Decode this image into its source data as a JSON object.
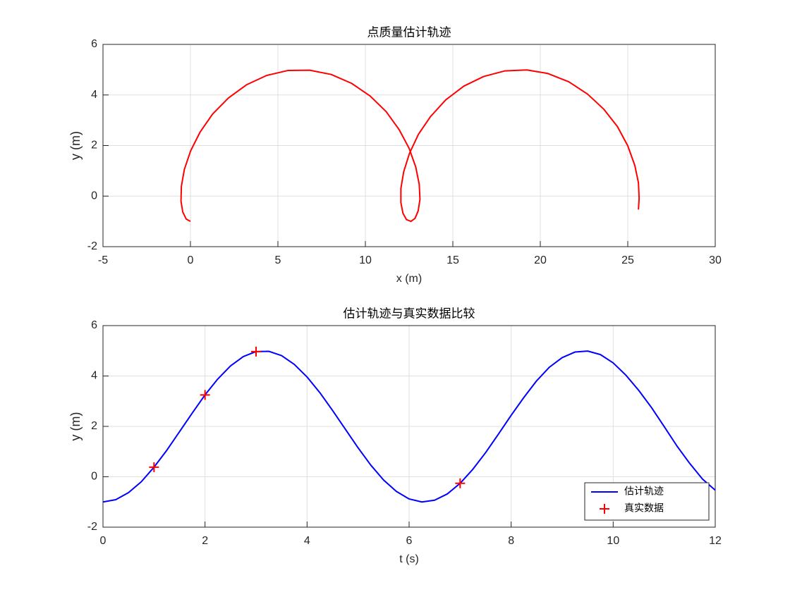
{
  "chart_data": [
    {
      "type": "line",
      "title": "点质量估计轨迹",
      "x_label": "x (m)",
      "y_label": "y (m)",
      "x": [
        0,
        -0.24,
        -0.44,
        -0.54,
        -0.52,
        -0.35,
        0.01,
        0.55,
        1.27,
        2.17,
        3.2,
        4.35,
        5.58,
        6.82,
        8.05,
        9.21,
        10.27,
        11.19,
        11.93,
        12.5,
        12.88,
        13.08,
        13.12,
        13.02,
        12.84,
        12.6,
        12.35,
        12.15,
        12.03,
        12.03,
        12.19,
        12.52,
        13.03,
        13.73,
        14.6,
        15.63,
        16.76,
        17.96,
        19.23,
        20.43,
        21.63,
        22.71,
        23.64,
        24.41,
        25,
        25.4,
        25.61,
        25.65,
        25.61
      ],
      "series": [
        {
          "color": "#ff0000",
          "values": [
            -1,
            -0.91,
            -0.63,
            -0.2,
            0.38,
            1.05,
            1.79,
            2.53,
            3.25,
            3.88,
            4.4,
            4.77,
            4.97,
            4.98,
            4.81,
            4.46,
            3.96,
            3.34,
            2.63,
            1.89,
            1.15,
            0.46,
            -0.13,
            -0.58,
            -0.88,
            -1,
            -0.93,
            -0.68,
            -0.26,
            0.3,
            0.96,
            1.69,
            2.44,
            3.15,
            3.81,
            4.35,
            4.73,
            4.95,
            4.99,
            4.85,
            4.52,
            4.03,
            3.43,
            2.75,
            1.99,
            1.22,
            0.53,
            -0.09,
            -0.53
          ]
        }
      ],
      "xlim": [
        -5,
        30
      ],
      "xticks": [
        -5,
        0,
        5,
        10,
        15,
        20,
        25,
        30
      ],
      "ylim": [
        -2,
        6
      ],
      "yticks": [
        -2,
        0,
        2,
        4,
        6
      ],
      "grid": true
    },
    {
      "type": "line",
      "title": "估计轨迹与真实数据比较",
      "x_label": "t (s)",
      "y_label": "y (m)",
      "x": [
        0,
        0.25,
        0.5,
        0.75,
        1,
        1.25,
        1.5,
        1.75,
        2,
        2.25,
        2.5,
        2.75,
        3,
        3.25,
        3.5,
        3.75,
        4,
        4.25,
        4.5,
        4.75,
        5,
        5.25,
        5.5,
        5.75,
        6,
        6.25,
        6.5,
        6.75,
        7,
        7.25,
        7.5,
        7.75,
        8,
        8.25,
        8.5,
        8.75,
        9,
        9.25,
        9.5,
        9.75,
        10,
        10.25,
        10.5,
        10.75,
        11,
        11.25,
        11.5,
        11.75,
        12
      ],
      "series": [
        {
          "name": "估计轨迹",
          "color": "#0000ff",
          "values": [
            -1,
            -0.91,
            -0.63,
            -0.2,
            0.38,
            1.05,
            1.79,
            2.53,
            3.25,
            3.88,
            4.4,
            4.77,
            4.97,
            4.98,
            4.81,
            4.46,
            3.96,
            3.34,
            2.63,
            1.89,
            1.15,
            0.46,
            -0.13,
            -0.58,
            -0.88,
            -1,
            -0.93,
            -0.68,
            -0.26,
            0.3,
            0.96,
            1.69,
            2.44,
            3.15,
            3.81,
            4.35,
            4.73,
            4.95,
            4.99,
            4.85,
            4.52,
            4.03,
            3.43,
            2.75,
            1.99,
            1.22,
            0.53,
            -0.09,
            -0.53
          ]
        },
        {
          "name": "真实数据",
          "type": "scatter",
          "marker": "+",
          "color": "#ff0000",
          "x": [
            1,
            2,
            3,
            7
          ],
          "values": [
            0.38,
            3.25,
            4.97,
            -0.26
          ]
        }
      ],
      "xlim": [
        0,
        12
      ],
      "xticks": [
        0,
        2,
        4,
        6,
        8,
        10,
        12
      ],
      "ylim": [
        -2,
        6
      ],
      "yticks": [
        -2,
        0,
        2,
        4,
        6
      ],
      "grid": true,
      "legend": "southeast"
    }
  ]
}
